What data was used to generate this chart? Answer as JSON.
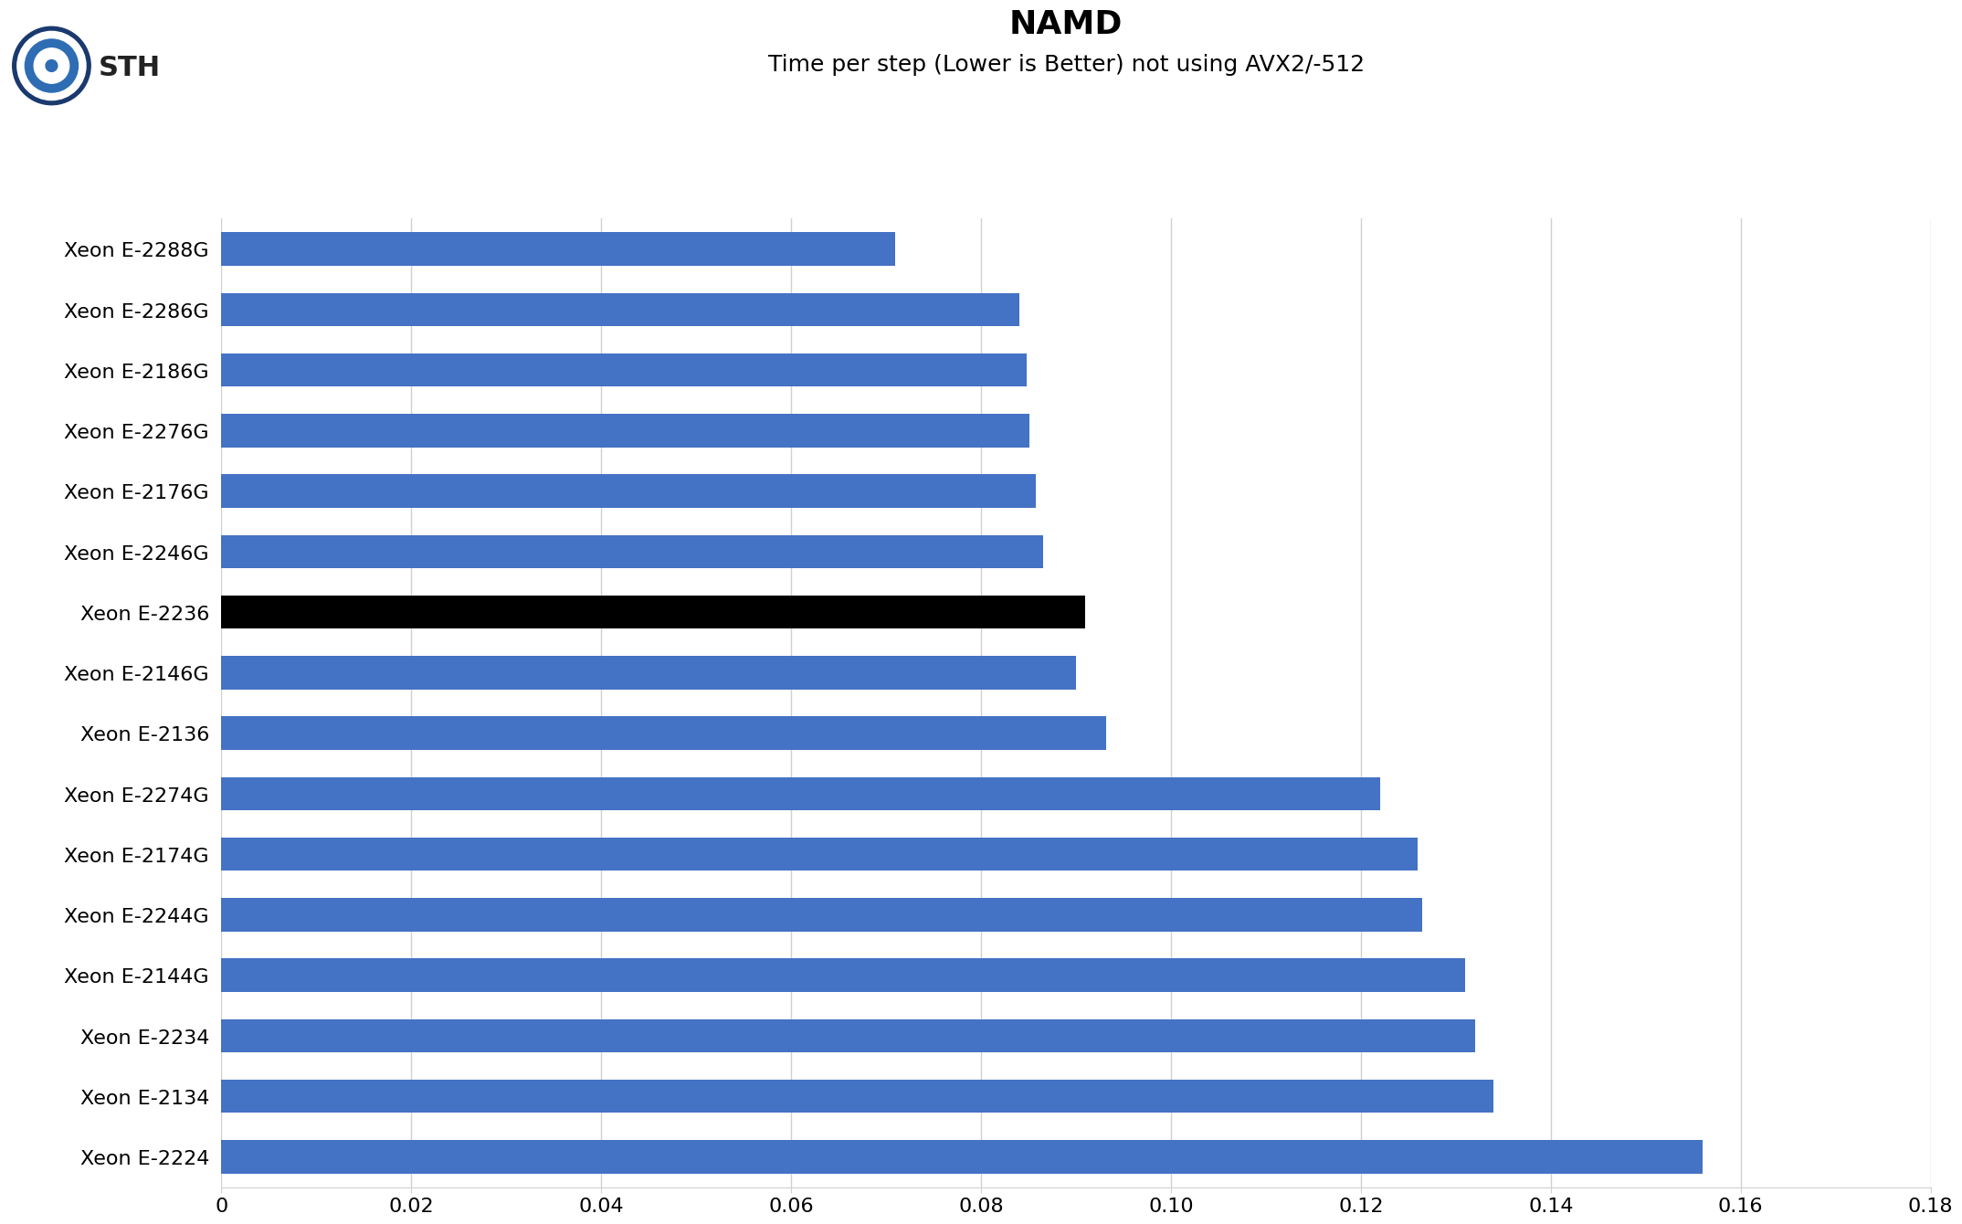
{
  "title": "NAMD",
  "subtitle": "Time per step (Lower is Better) not using AVX2/-512",
  "categories": [
    "Xeon E-2288G",
    "Xeon E-2286G",
    "Xeon E-2186G",
    "Xeon E-2276G",
    "Xeon E-2176G",
    "Xeon E-2246G",
    "Xeon E-2236",
    "Xeon E-2146G",
    "Xeon E-2136",
    "Xeon E-2274G",
    "Xeon E-2174G",
    "Xeon E-2244G",
    "Xeon E-2144G",
    "Xeon E-2234",
    "Xeon E-2134",
    "Xeon E-2224"
  ],
  "values": [
    0.071,
    0.084,
    0.0848,
    0.0851,
    0.0858,
    0.0865,
    0.091,
    0.09,
    0.0932,
    0.122,
    0.126,
    0.1265,
    0.131,
    0.132,
    0.134,
    0.156
  ],
  "bar_colors": [
    "#4472C4",
    "#4472C4",
    "#4472C4",
    "#4472C4",
    "#4472C4",
    "#4472C4",
    "#000000",
    "#4472C4",
    "#4472C4",
    "#4472C4",
    "#4472C4",
    "#4472C4",
    "#4472C4",
    "#4472C4",
    "#4472C4",
    "#4472C4"
  ],
  "xlim": [
    0,
    0.18
  ],
  "xticks": [
    0,
    0.02,
    0.04,
    0.06,
    0.08,
    0.1,
    0.12,
    0.14,
    0.16,
    0.18
  ],
  "bar_height": 0.55,
  "background_color": "#ffffff",
  "grid_color": "#d0d0d0",
  "title_fontsize": 26,
  "subtitle_fontsize": 18,
  "tick_fontsize": 16,
  "label_fontsize": 16,
  "logo_primary": "#2E6DB4",
  "logo_ring_color": "#1a4a8a",
  "sth_text_color": "#222222"
}
